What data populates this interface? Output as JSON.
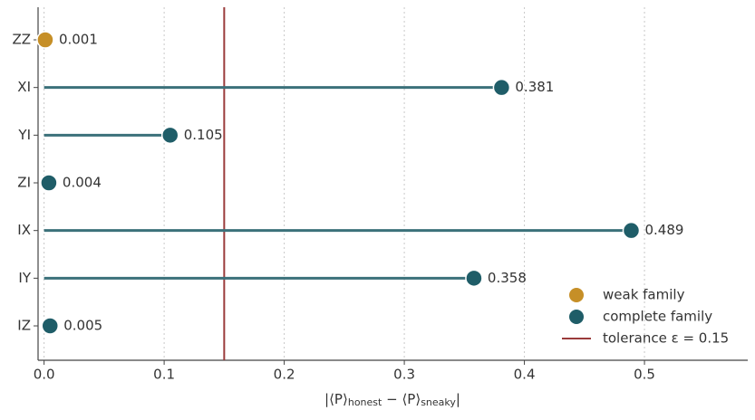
{
  "chart_data": {
    "type": "lollipop",
    "categories": [
      "ZZ",
      "XI",
      "YI",
      "ZI",
      "IX",
      "IY",
      "IZ"
    ],
    "series": [
      {
        "name": "weak family",
        "color": "#c68f27",
        "values": [
          0.001,
          null,
          null,
          null,
          null,
          null,
          null
        ]
      },
      {
        "name": "complete family",
        "color": "#1f5d68",
        "values": [
          null,
          0.381,
          0.105,
          0.004,
          0.489,
          0.358,
          0.005
        ]
      }
    ],
    "reference_line": {
      "value": 0.15,
      "label": "tolerance ε = 0.15",
      "color": "#9a3b3b"
    },
    "xlabel": [
      "|⟨P⟩",
      "honest",
      " − ⟨P⟩",
      "sneaky",
      "|"
    ],
    "xlim": [
      -0.005,
      0.586
    ],
    "xticks": [
      {
        "value": 0,
        "label": "0.0"
      },
      0.1,
      0.2,
      0.3,
      0.4,
      0.5
    ],
    "grid": true,
    "legend": "lower right"
  }
}
